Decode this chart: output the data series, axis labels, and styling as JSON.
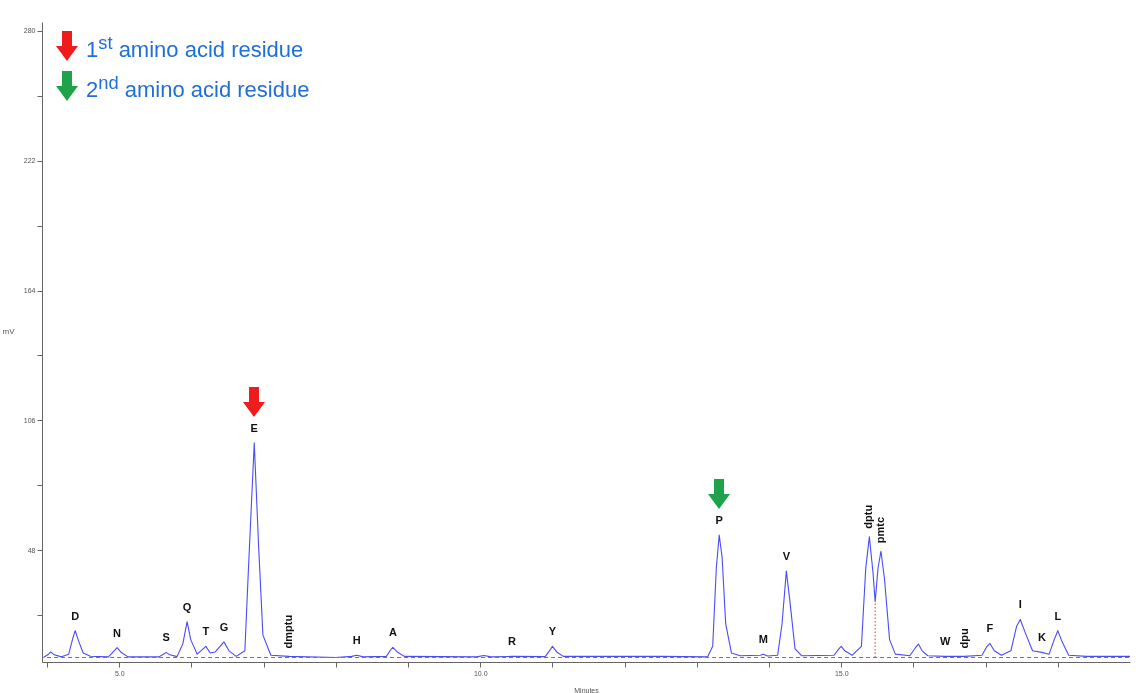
{
  "chart_data": {
    "type": "line",
    "xlabel": "Minutes",
    "ylabel": "mV",
    "xlim": [
      3.93,
      19.0
    ],
    "ylim": [
      -2,
      284
    ],
    "xticks": [
      {
        "value": 4,
        "label": null
      },
      {
        "value": 5,
        "label": "5.0"
      },
      {
        "value": 6,
        "label": null
      },
      {
        "value": 7,
        "label": null
      },
      {
        "value": 8,
        "label": null
      },
      {
        "value": 9,
        "label": null
      },
      {
        "value": 10,
        "label": "10.0"
      },
      {
        "value": 11,
        "label": null
      },
      {
        "value": 12,
        "label": null
      },
      {
        "value": 13,
        "label": null
      },
      {
        "value": 14,
        "label": null
      },
      {
        "value": 15,
        "label": "15.0"
      },
      {
        "value": 16,
        "label": null
      },
      {
        "value": 17,
        "label": null
      },
      {
        "value": 18,
        "label": null
      }
    ],
    "yticks": [
      {
        "value": 19,
        "label": null
      },
      48,
      {
        "value": 77,
        "label": null
      },
      106,
      {
        "value": 135,
        "label": null
      },
      164,
      {
        "value": 193,
        "label": null
      },
      222,
      {
        "value": 251,
        "label": null
      },
      280
    ],
    "marker": "none",
    "series": [
      {
        "color": "#4b4bf5",
        "line_style": "solid",
        "x": [
          3.95,
          4.02,
          4.05,
          4.1,
          4.2,
          4.3,
          4.36,
          4.39,
          4.43,
          4.5,
          4.6,
          4.85,
          4.93,
          4.97,
          5.02,
          5.12,
          5.55,
          5.61,
          5.65,
          5.7,
          5.8,
          5.88,
          5.94,
          5.99,
          6.08,
          6.15,
          6.2,
          6.26,
          6.33,
          6.45,
          6.52,
          6.62,
          6.74,
          6.79,
          6.87,
          6.93,
          6.99,
          7.1,
          7.35,
          8.0,
          8.22,
          8.29,
          8.38,
          8.7,
          8.76,
          8.79,
          8.85,
          8.95,
          9.95,
          10.05,
          10.15,
          10.44,
          10.9,
          10.97,
          11.0,
          11.06,
          11.15,
          12.5,
          13.15,
          13.22,
          13.27,
          13.31,
          13.35,
          13.4,
          13.48,
          13.6,
          13.88,
          13.92,
          13.98,
          14.12,
          14.18,
          14.24,
          14.29,
          14.36,
          14.45,
          14.9,
          14.97,
          15.0,
          15.05,
          15.15,
          15.28,
          15.34,
          15.39,
          15.44,
          15.47,
          15.51,
          15.55,
          15.6,
          15.67,
          15.75,
          15.95,
          16.03,
          16.07,
          16.12,
          16.2,
          16.44,
          16.71,
          16.95,
          17.01,
          17.06,
          17.12,
          17.22,
          17.35,
          17.43,
          17.48,
          17.55,
          17.65,
          17.78,
          17.88,
          17.95,
          18.0,
          18.06,
          18.15,
          18.4,
          18.9,
          19.0
        ],
        "values": [
          0,
          1.5,
          2.5,
          1.2,
          0.3,
          1.5,
          9,
          12,
          8,
          2,
          0.6,
          0.3,
          3,
          4.4,
          2.5,
          0.3,
          0.3,
          1.5,
          2.3,
          1.2,
          0.4,
          6,
          16,
          8,
          1.5,
          3.5,
          5,
          2,
          2.5,
          7,
          3,
          0.5,
          3,
          40,
          96,
          50,
          10,
          1,
          0.5,
          0,
          0.5,
          1,
          0.3,
          0.5,
          3.5,
          4.5,
          2.5,
          0.5,
          0.3,
          0.9,
          0.3,
          0.5,
          0.4,
          3.5,
          5,
          2.5,
          0.5,
          0.5,
          0.3,
          5,
          40,
          54.7,
          45,
          15,
          2,
          0.8,
          1,
          1.5,
          0.7,
          1,
          15,
          38.6,
          25,
          4,
          0.8,
          1,
          4,
          5,
          3,
          1,
          5,
          40,
          54,
          38,
          25,
          40,
          47.5,
          35,
          8,
          1.5,
          0.8,
          4.5,
          6,
          3,
          0.8,
          0.5,
          0.5,
          1,
          4.5,
          6.3,
          3,
          1,
          3,
          14,
          17,
          11,
          3,
          2.3,
          1.5,
          8,
          12,
          7,
          1,
          0.5,
          0.5,
          0.5
        ]
      },
      {
        "color": "#e8493f",
        "line_style": "dashed",
        "x": [
          4.0,
          19.0
        ],
        "values": [
          0,
          0
        ]
      },
      {
        "color": "#e8493f",
        "line_style": "dotted",
        "x": [
          15.47,
          15.47
        ],
        "values": [
          0,
          25
        ]
      }
    ],
    "annotations": [
      "1$^{st}$ amino acid residue",
      "2$^{nd}$ amino acid residue",
      {
        "text": "D",
        "x": 4.39,
        "y": 12
      },
      {
        "text": "N",
        "x": 4.97,
        "y": 4.4
      },
      {
        "text": "S",
        "x": 5.65,
        "y": 2.3
      },
      {
        "text": "Q",
        "x": 5.94,
        "y": 16
      },
      {
        "text": "T",
        "x": 6.2,
        "y": 5
      },
      {
        "text": "G",
        "x": 6.45,
        "y": 7
      },
      {
        "text": "E",
        "x": 6.87,
        "y": 96
      },
      {
        "text": "dmptu",
        "x": 7.35,
        "y": 0.5
      },
      {
        "text": "H",
        "x": 8.29,
        "y": 1
      },
      {
        "text": "A",
        "x": 8.79,
        "y": 4.5
      },
      {
        "text": "R",
        "x": 10.44,
        "y": 0.5
      },
      {
        "text": "Y",
        "x": 11.0,
        "y": 5
      },
      {
        "text": "P",
        "x": 13.31,
        "y": 54.7
      },
      {
        "text": "M",
        "x": 13.92,
        "y": 1.5
      },
      {
        "text": "V",
        "x": 14.24,
        "y": 38.6
      },
      {
        "text": "dptu",
        "x": 15.39,
        "y": 54
      },
      {
        "text": "pmtc",
        "x": 15.55,
        "y": 47.5
      },
      {
        "text": "W",
        "x": 16.44,
        "y": 0.5
      },
      {
        "text": "dpu",
        "x": 16.71,
        "y": 0.5
      },
      {
        "text": "F",
        "x": 17.06,
        "y": 6.3
      },
      {
        "text": "I",
        "x": 17.48,
        "y": 17
      },
      {
        "text": "K",
        "x": 17.78,
        "y": 2.3
      },
      {
        "text": "L",
        "x": 18.0,
        "y": 12
      }
    ]
  }
}
